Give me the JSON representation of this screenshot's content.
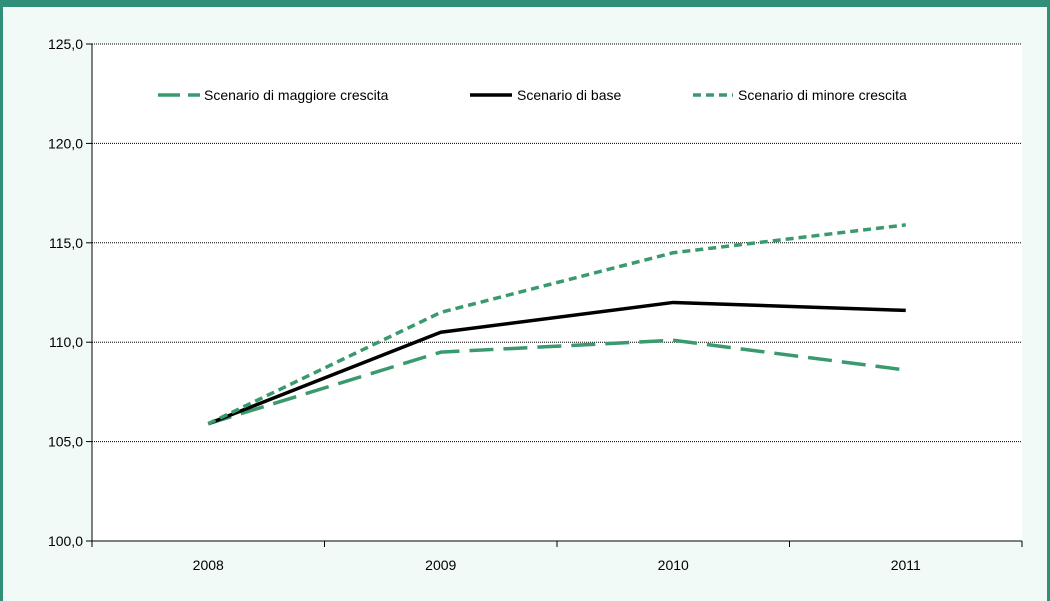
{
  "chart_data": {
    "type": "line",
    "title": "",
    "xlabel": "",
    "ylabel": "",
    "categories": [
      "2008",
      "2009",
      "2010",
      "2011"
    ],
    "ylim": [
      100,
      125
    ],
    "y_ticks": [
      "100,0",
      "105,0",
      "110,0",
      "115,0",
      "120,0",
      "125,0"
    ],
    "grid": "horizontal",
    "legend_position": "top",
    "series": [
      {
        "name": "Scenario di maggiore crescita",
        "values": [
          105.9,
          109.5,
          110.1,
          108.6
        ],
        "color": "#3a9a6e",
        "style": "long-dash"
      },
      {
        "name": "Scenario di base",
        "values": [
          105.9,
          110.5,
          112.0,
          111.6
        ],
        "color": "#000000",
        "style": "solid"
      },
      {
        "name": "Scenario di minore crescita",
        "values": [
          105.9,
          111.5,
          114.5,
          115.9
        ],
        "color": "#3a9a6e",
        "style": "short-dash"
      }
    ]
  }
}
